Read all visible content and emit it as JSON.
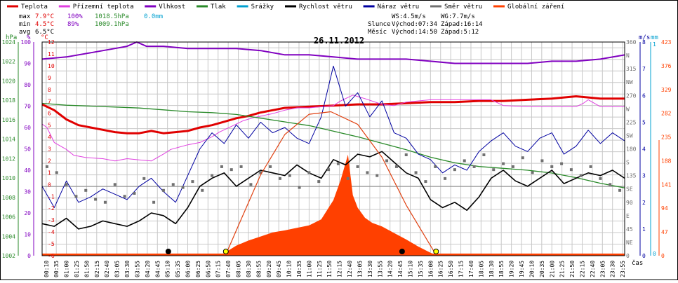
{
  "legend": [
    {
      "label": "Teplota",
      "color": "#e00000"
    },
    {
      "label": "Přízemní teplota",
      "color": "#e040e0"
    },
    {
      "label": "Vlhkost",
      "color": "#8000c0"
    },
    {
      "label": "Tlak",
      "color": "#2a8a2a"
    },
    {
      "label": "Srážky",
      "color": "#00a0d0"
    },
    {
      "label": "Rychlost větru",
      "color": "#000000"
    },
    {
      "label": "Náraz větru",
      "color": "#0000a0"
    },
    {
      "label": "Směr větru",
      "color": "#707070"
    },
    {
      "label": "Globální záření",
      "color": "#ff4000"
    }
  ],
  "stats": {
    "max_label": "max",
    "max_temp": "7.9°C",
    "max_hum": "100%",
    "max_press": "1018.5hPa",
    "max_rain": "0.0mm",
    "min_label": "min",
    "min_temp": "4.5°C",
    "min_hum": "89%",
    "min_press": "1009.1hPa",
    "avg_label": "avg",
    "avg_temp": "6.5°C"
  },
  "wind_info": {
    "ws": "WS:4.5m/s",
    "wg": "WG:7.7m/s",
    "sun_label": "Slunce",
    "sun_rise": "Východ:07:34",
    "sun_set": "Západ:16:14",
    "moon_label": "Měsíc",
    "moon_rise": "Východ:14:50",
    "moon_set": "Západ:5:12"
  },
  "date_title": "26.11.2012",
  "xlabel_unit": "čas",
  "colors": {
    "grid": "#c8c8c8",
    "frame": "#000000"
  },
  "chart_data": {
    "type": "line",
    "title": "26.11.2012",
    "x_ticks": [
      "00:10",
      "00:35",
      "01:00",
      "01:25",
      "01:50",
      "02:15",
      "02:40",
      "03:05",
      "03:30",
      "03:55",
      "04:20",
      "04:45",
      "05:10",
      "05:35",
      "06:00",
      "06:25",
      "06:50",
      "07:15",
      "07:40",
      "08:05",
      "08:30",
      "08:55",
      "09:20",
      "09:45",
      "10:10",
      "10:35",
      "11:00",
      "11:25",
      "11:50",
      "12:15",
      "12:40",
      "13:05",
      "13:30",
      "13:55",
      "14:20",
      "14:45",
      "15:10",
      "15:35",
      "16:00",
      "16:25",
      "16:50",
      "17:15",
      "17:40",
      "18:05",
      "18:30",
      "18:55",
      "19:20",
      "19:45",
      "20:10",
      "20:35",
      "21:00",
      "21:25",
      "21:50",
      "22:15",
      "22:40",
      "23:05",
      "23:30",
      "23:55"
    ],
    "xlim_hours": [
      0,
      24
    ],
    "axes": {
      "pressure_hpa": {
        "label": "hPa",
        "ticks": [
          "1024",
          "1022",
          "1020",
          "1018",
          "1016",
          "1014",
          "1012",
          "1010",
          "1008",
          "1006",
          "1004",
          "1002"
        ],
        "range": [
          1002,
          1025
        ]
      },
      "humidity_pct": {
        "label": "%",
        "ticks": [
          "100",
          "90",
          "80",
          "70",
          "60",
          "50",
          "40",
          "30",
          "20",
          "10",
          "0"
        ],
        "range": [
          0,
          100
        ]
      },
      "temperature_c": {
        "label": "°C",
        "ticks": [
          "12",
          "11",
          "10",
          "9",
          "8",
          "7",
          "6",
          "5",
          "4",
          "3",
          "2",
          "1",
          "0",
          "-1",
          "-2",
          "-3",
          "-4",
          "-5",
          "-6"
        ],
        "range": [
          -6,
          12.5
        ]
      },
      "wind_dir": {
        "ticks": [
          "360",
          "N",
          "315",
          "NW",
          "270",
          "W",
          "225",
          "SW",
          "180",
          "S",
          "135",
          "SE",
          "90",
          "E",
          "45",
          "NE",
          "0"
        ],
        "range": [
          0,
          360
        ]
      },
      "wind_ms": {
        "label": "m/s",
        "ticks": [
          "8",
          "7",
          "6",
          "5",
          "4",
          "3",
          "2",
          "1",
          "0"
        ],
        "range": [
          0,
          8
        ]
      },
      "rain_mm": {
        "label": "mm",
        "ticks": [
          "1",
          "0"
        ],
        "range": [
          0,
          1
        ]
      },
      "radiation": {
        "ticks": [
          "423",
          "376",
          "329",
          "282",
          "235",
          "188",
          "141",
          "94",
          "47",
          "0"
        ],
        "range": [
          0,
          423
        ]
      }
    },
    "series": [
      {
        "name": "Teplota",
        "unit": "°C",
        "x": [
          0,
          0.5,
          1,
          1.5,
          2,
          2.5,
          3,
          3.5,
          4,
          4.5,
          5,
          5.5,
          6,
          6.5,
          7,
          7.5,
          8,
          8.5,
          9,
          10,
          11,
          12,
          13,
          14,
          15,
          16,
          17,
          18,
          19,
          20,
          21,
          22,
          23,
          24
        ],
        "y": [
          7.1,
          6.6,
          5.8,
          5.3,
          5.1,
          4.9,
          4.7,
          4.6,
          4.6,
          4.8,
          4.6,
          4.7,
          4.8,
          5.1,
          5.3,
          5.6,
          5.9,
          6.1,
          6.4,
          6.8,
          6.9,
          7.0,
          7.1,
          7.1,
          7.2,
          7.3,
          7.3,
          7.4,
          7.4,
          7.5,
          7.6,
          7.8,
          7.6,
          7.6
        ]
      },
      {
        "name": "Přízemní teplota",
        "unit": "°C",
        "x": [
          0,
          0.2,
          0.5,
          1,
          1.3,
          1.8,
          2.5,
          3,
          3.5,
          4,
          4.5,
          5,
          5.3,
          6,
          6.5,
          7,
          7.3,
          7.8,
          8.3,
          8.8,
          9.5,
          10,
          10.5,
          11,
          11.5,
          12,
          12.3,
          12.8,
          13.3,
          14,
          14.5,
          15,
          16,
          17,
          18,
          18.5,
          19,
          20,
          21,
          22,
          22.3,
          22.5,
          23,
          23.5,
          24
        ],
        "y": [
          5.4,
          5.1,
          3.8,
          3.2,
          2.7,
          2.5,
          2.4,
          2.2,
          2.4,
          2.3,
          2.2,
          2.8,
          3.2,
          3.6,
          3.8,
          4.3,
          4.7,
          5.2,
          5.7,
          6.0,
          6.3,
          6.6,
          6.8,
          6.8,
          6.9,
          7.0,
          7.4,
          7.9,
          7.6,
          7.1,
          7.0,
          7.3,
          7.5,
          7.5,
          7.5,
          7.5,
          7.0,
          6.9,
          6.9,
          6.9,
          7.2,
          7.5,
          6.9,
          6.9,
          6.9
        ]
      },
      {
        "name": "Vlhkost",
        "unit": "%",
        "x": [
          0,
          1,
          2,
          3,
          3.5,
          3.9,
          4.3,
          5,
          6,
          7,
          8,
          9,
          10,
          11,
          12,
          13,
          14,
          15,
          16,
          17,
          18,
          19,
          20,
          21,
          22,
          23,
          24
        ],
        "y": [
          92,
          93,
          95,
          97,
          98,
          100,
          98,
          98,
          97,
          97,
          97,
          96,
          94,
          94,
          93,
          92,
          92,
          92,
          91,
          90,
          90,
          90,
          90,
          91,
          91,
          92,
          94
        ]
      },
      {
        "name": "Tlak",
        "unit": "hPa",
        "x": [
          0,
          1,
          2,
          3,
          4,
          5,
          6,
          7,
          8,
          9,
          10,
          11,
          12,
          13,
          14,
          15,
          16,
          17,
          18,
          19,
          20,
          21,
          22,
          23,
          24
        ],
        "y": [
          1018.4,
          1018.2,
          1018.1,
          1018.0,
          1017.9,
          1017.7,
          1017.5,
          1017.4,
          1017.2,
          1016.8,
          1016.4,
          1016.0,
          1015.4,
          1014.8,
          1014.1,
          1013.4,
          1012.6,
          1012.0,
          1011.6,
          1011.4,
          1011.2,
          1010.9,
          1010.4,
          1009.8,
          1009.3
        ]
      },
      {
        "name": "Srážky",
        "unit": "mm",
        "x": [
          0,
          24
        ],
        "y": [
          0,
          0
        ]
      },
      {
        "name": "Rychlost větru",
        "unit": "m/s",
        "x": [
          0,
          0.5,
          1,
          1.5,
          2,
          2.5,
          3,
          3.5,
          4,
          4.5,
          5,
          5.5,
          6,
          6.5,
          7,
          7.5,
          8,
          8.5,
          9,
          9.5,
          10,
          10.5,
          11,
          11.5,
          12,
          12.5,
          13,
          13.5,
          14,
          14.5,
          15,
          15.5,
          16,
          16.5,
          17,
          17.5,
          18,
          18.5,
          19,
          19.5,
          20,
          20.5,
          21,
          21.5,
          22,
          22.5,
          23,
          23.5,
          24
        ],
        "y": [
          1.2,
          1.1,
          1.4,
          1.0,
          1.1,
          1.3,
          1.2,
          1.1,
          1.3,
          1.6,
          1.5,
          1.2,
          1.8,
          2.6,
          2.9,
          3.1,
          2.6,
          2.9,
          3.2,
          3.1,
          3.0,
          3.4,
          3.1,
          2.9,
          3.6,
          3.4,
          3.8,
          3.7,
          3.9,
          3.5,
          3.1,
          2.9,
          2.1,
          1.8,
          2.0,
          1.7,
          2.2,
          2.9,
          3.2,
          2.8,
          2.6,
          2.9,
          3.2,
          2.7,
          2.9,
          3.1,
          3.0,
          3.2,
          2.9
        ]
      },
      {
        "name": "Náraz větru",
        "unit": "m/s",
        "x": [
          0,
          0.5,
          1,
          1.5,
          2,
          2.5,
          3,
          3.5,
          4,
          4.5,
          5,
          5.5,
          6,
          6.5,
          7,
          7.5,
          8,
          8.5,
          9,
          9.5,
          10,
          10.5,
          11,
          11.5,
          12,
          12.5,
          13,
          13.5,
          14,
          14.5,
          15,
          15.5,
          16,
          16.5,
          17,
          17.5,
          18,
          18.5,
          19,
          19.5,
          20,
          20.5,
          21,
          21.5,
          22,
          22.5,
          23,
          23.5,
          24
        ],
        "y": [
          2.6,
          1.8,
          2.8,
          2.0,
          2.2,
          2.5,
          2.3,
          2.1,
          2.6,
          2.9,
          2.4,
          2.0,
          3.0,
          4.0,
          4.6,
          4.2,
          4.9,
          4.4,
          5.0,
          4.6,
          4.8,
          4.4,
          4.2,
          5.2,
          7.1,
          5.6,
          6.1,
          5.2,
          5.8,
          4.6,
          4.4,
          3.8,
          3.6,
          3.1,
          3.4,
          3.2,
          3.9,
          4.3,
          4.6,
          4.1,
          3.9,
          4.4,
          4.6,
          3.8,
          4.1,
          4.7,
          4.2,
          4.6,
          4.3
        ]
      },
      {
        "name": "Směr větru",
        "unit": "°",
        "type": "scatter",
        "x": [
          0.2,
          0.6,
          1.0,
          1.4,
          1.8,
          2.2,
          2.6,
          3.0,
          3.4,
          3.8,
          4.2,
          4.6,
          5.0,
          5.4,
          5.8,
          6.2,
          6.6,
          7.0,
          7.4,
          7.8,
          8.2,
          8.6,
          9.0,
          9.4,
          9.8,
          10.2,
          10.6,
          11.0,
          11.4,
          11.8,
          12.2,
          12.6,
          13.0,
          13.4,
          13.8,
          14.2,
          14.6,
          15.0,
          15.4,
          15.8,
          16.2,
          16.6,
          17.0,
          17.4,
          17.8,
          18.2,
          18.6,
          19.0,
          19.4,
          19.8,
          20.2,
          20.6,
          21.0,
          21.4,
          21.8,
          22.2,
          22.6,
          23.0,
          23.4,
          23.8
        ],
        "y": [
          150,
          140,
          120,
          100,
          110,
          95,
          90,
          120,
          100,
          105,
          130,
          90,
          110,
          120,
          115,
          125,
          110,
          135,
          150,
          145,
          150,
          120,
          140,
          150,
          130,
          135,
          115,
          140,
          125,
          145,
          155,
          130,
          150,
          140,
          135,
          160,
          150,
          170,
          140,
          125,
          150,
          130,
          145,
          160,
          150,
          170,
          145,
          155,
          150,
          165,
          140,
          160,
          150,
          155,
          145,
          135,
          150,
          130,
          120,
          110
        ]
      },
      {
        "name": "Globální záření",
        "unit": "W/m²",
        "type": "area",
        "x": [
          7.3,
          7.6,
          8.0,
          8.5,
          9.0,
          9.5,
          10.0,
          10.5,
          11.0,
          11.5,
          12.0,
          12.3,
          12.6,
          12.8,
          13.0,
          13.3,
          13.6,
          14.0,
          14.5,
          15.0,
          15.5,
          16.0,
          16.3
        ],
        "y": [
          0,
          8,
          20,
          30,
          38,
          46,
          50,
          55,
          60,
          72,
          110,
          150,
          200,
          120,
          95,
          75,
          65,
          58,
          45,
          32,
          18,
          6,
          0
        ]
      },
      {
        "name": "Teoretické záření",
        "unit": "W/m²",
        "type": "curve",
        "x": [
          7.55,
          8.0,
          9.0,
          10.0,
          11.0,
          11.9,
          13.0,
          14.0,
          15.0,
          16.0,
          16.25
        ],
        "y": [
          0,
          50,
          160,
          240,
          280,
          285,
          260,
          195,
          100,
          20,
          0
        ]
      }
    ],
    "markers": [
      {
        "name": "sunrise",
        "x": 7.57,
        "color": "#ffff00"
      },
      {
        "name": "sunset",
        "x": 16.23,
        "color": "#ffff00"
      },
      {
        "name": "moonset",
        "x": 5.2,
        "color": "#000000"
      },
      {
        "name": "moonrise",
        "x": 14.83,
        "color": "#000000"
      }
    ],
    "grid": true,
    "legend_position": "top"
  }
}
